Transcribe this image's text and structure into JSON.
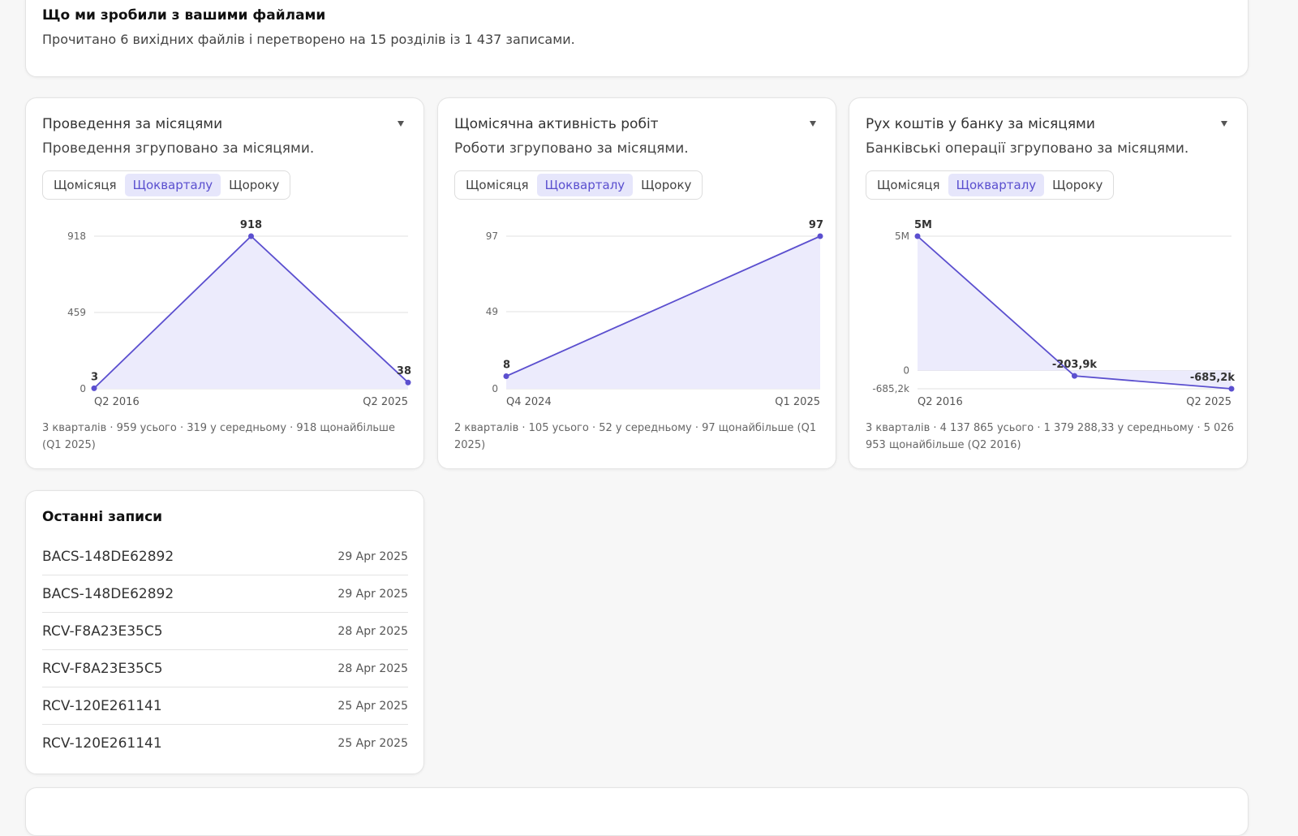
{
  "summary": {
    "title": "Що ми зробили з вашими файлами",
    "text": "Прочитано 6 вихідних файлів і перетворено на 15 розділів із 1 437 записами."
  },
  "charts": [
    {
      "type": "line",
      "title": "Проведення за місяцями",
      "subtitle": "Проведення згруповано за місяцями.",
      "tabs": [
        "Щомісяця",
        "Щокварталу",
        "Щороку"
      ],
      "active_tab": 1,
      "categories": [
        "Q2 2016",
        null,
        "Q2 2025"
      ],
      "values": [
        3,
        918,
        38
      ],
      "ylim": [
        0,
        918
      ],
      "yticks": [
        0,
        459,
        918
      ],
      "color": "#5b4fcf",
      "fill": "#ecebfc",
      "grid": true,
      "footnote": "3 кварталів · 959 усього · 319 у середньому · 918 щонайбільше (Q1 2025)"
    },
    {
      "type": "line",
      "title": "Щомісячна активність робіт",
      "subtitle": "Роботи згруповано за місяцями.",
      "tabs": [
        "Щомісяця",
        "Щокварталу",
        "Щороку"
      ],
      "active_tab": 1,
      "categories": [
        "Q4 2024",
        "Q1 2025"
      ],
      "values": [
        8,
        97
      ],
      "ylim": [
        0,
        97
      ],
      "yticks": [
        0,
        49,
        97
      ],
      "color": "#5b4fcf",
      "fill": "#ecebfc",
      "grid": true,
      "footnote": "2 кварталів · 105 усього · 52 у середньому · 97 щонайбільше (Q1 2025)"
    },
    {
      "type": "line",
      "title": "Рух коштів у банку за місяцями",
      "subtitle": "Банківські операції згруповано за місяцями.",
      "tabs": [
        "Щомісяця",
        "Щокварталу",
        "Щороку"
      ],
      "active_tab": 1,
      "categories": [
        "Q2 2016",
        null,
        "Q2 2025"
      ],
      "values": [
        5026953,
        -203888,
        -685200
      ],
      "value_labels": [
        "5M",
        "-203,9k",
        "-685,2k"
      ],
      "ylim": [
        -685200,
        5026953
      ],
      "yticks": [
        {
          "value": -685200,
          "label": "-685,2k"
        },
        0,
        {
          "value": 5026953,
          "label": "5M"
        }
      ],
      "color": "#5b4fcf",
      "fill": "#ecebfc",
      "grid": true,
      "footnote": "3 кварталів · 4 137 865 усього · 1 379 288,33 у середньому · 5 026 953 щонайбільше (Q2 2016)"
    }
  ],
  "recent": {
    "title": "Останні записи",
    "rows": [
      {
        "id": "BACS-148DE62892",
        "date": "29 Apr 2025"
      },
      {
        "id": "BACS-148DE62892",
        "date": "29 Apr 2025"
      },
      {
        "id": "RCV-F8A23E35C5",
        "date": "28 Apr 2025"
      },
      {
        "id": "RCV-F8A23E35C5",
        "date": "28 Apr 2025"
      },
      {
        "id": "RCV-120E261141",
        "date": "25 Apr 2025"
      },
      {
        "id": "RCV-120E261141",
        "date": "25 Apr 2025"
      }
    ]
  }
}
